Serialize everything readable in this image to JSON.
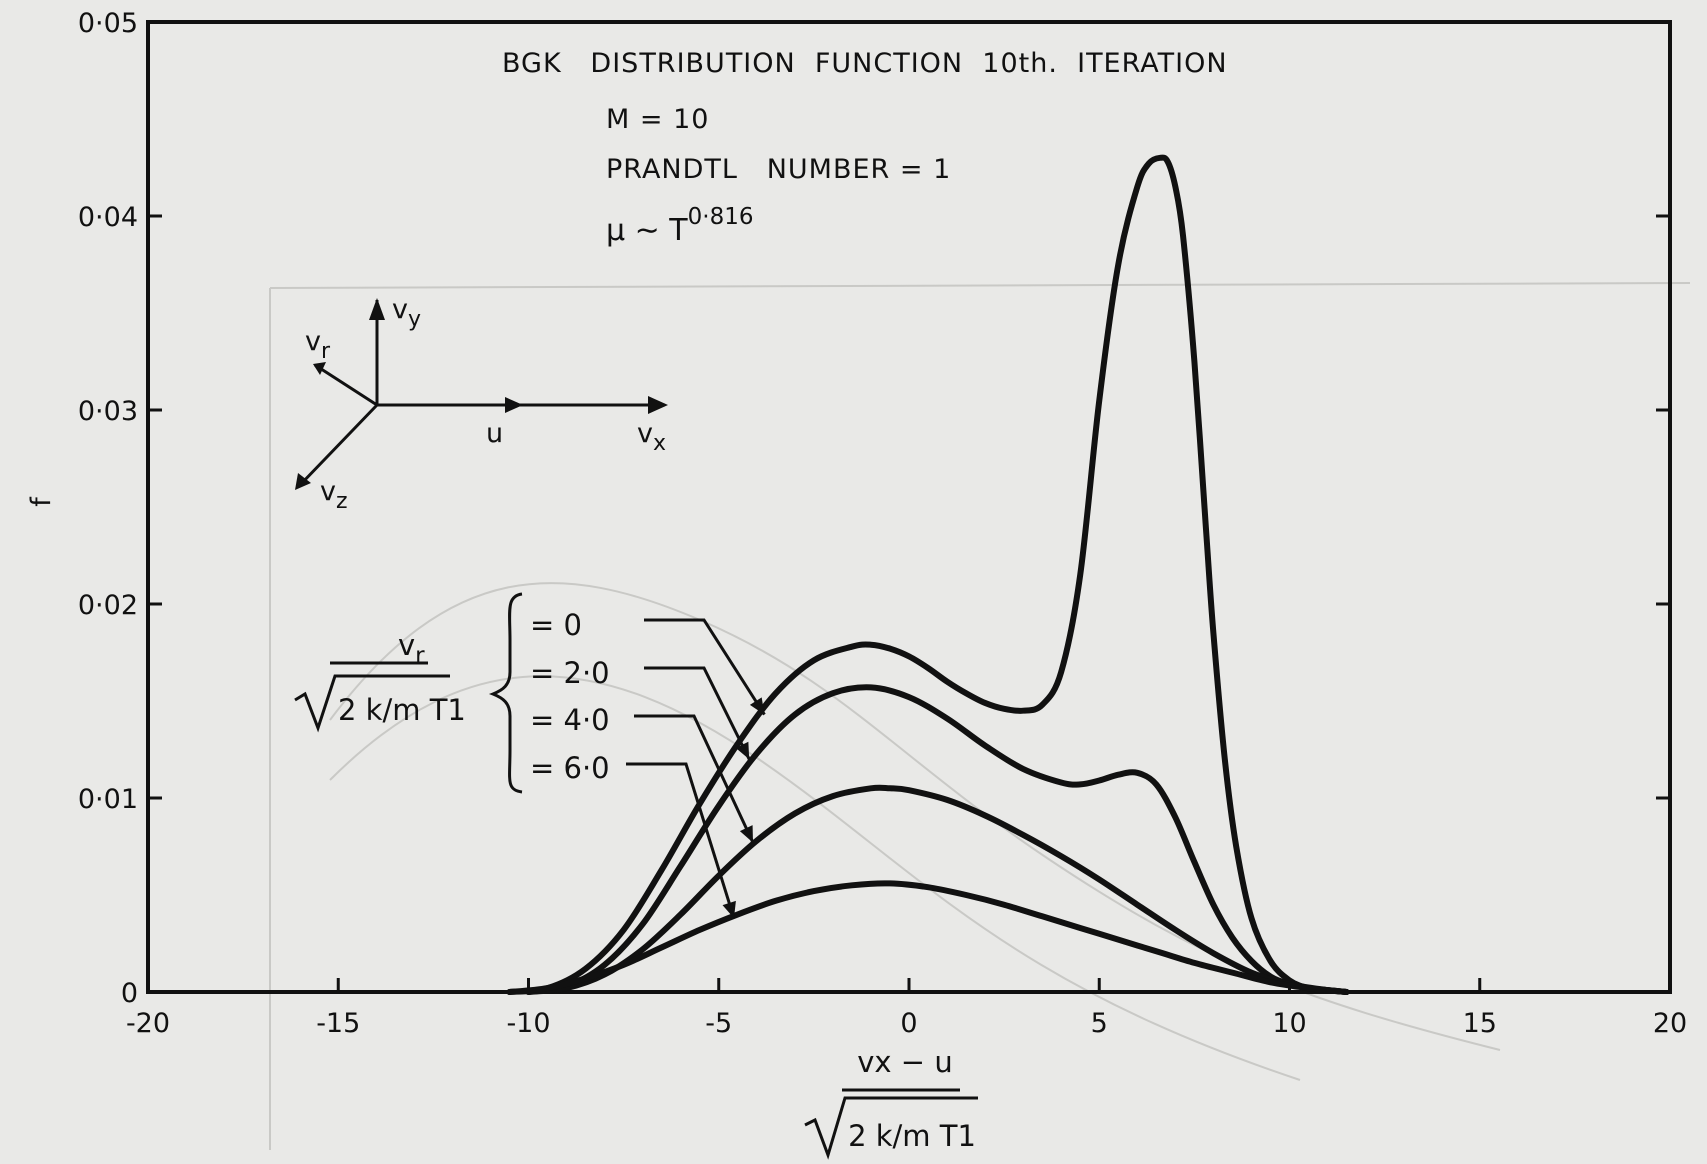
{
  "chart_data": {
    "type": "line",
    "title_lines": [
      "BGK   DISTRIBUTION  FUNCTION  10th.  ITERATION",
      "M = 10",
      "PRANDTL   NUMBER = 1"
    ],
    "viscosity_law": {
      "symbol": "μ ∼ T",
      "exponent": "0·816"
    },
    "xlabel": {
      "numerator": "vx − u",
      "denominator": "2 k/m T1"
    },
    "ylabel": "f",
    "xlim": [
      -20,
      20
    ],
    "ylim": [
      0,
      0.05
    ],
    "x_tick_labels": [
      {
        "value": -20,
        "label": "-20"
      },
      {
        "value": -15,
        "label": "-15"
      },
      {
        "value": -10,
        "label": "-10"
      },
      {
        "value": -5,
        "label": "-5"
      },
      {
        "value": 0,
        "label": "0"
      },
      {
        "value": 5,
        "label": "5"
      },
      {
        "value": 10,
        "label": "10"
      },
      {
        "value": 15,
        "label": "15"
      },
      {
        "value": 20,
        "label": "20"
      }
    ],
    "y_tick_labels": [
      {
        "value": 0,
        "label": "0"
      },
      {
        "value": 0.01,
        "label": "0·01"
      },
      {
        "value": 0.02,
        "label": "0·02"
      },
      {
        "value": 0.03,
        "label": "0·03"
      },
      {
        "value": 0.04,
        "label": "0·04"
      },
      {
        "value": 0.05,
        "label": "0·05"
      }
    ],
    "legend": {
      "variable": {
        "numerator": "vr",
        "denominator": "2 k/m T1"
      },
      "entries": [
        "=  0",
        "= 2·0",
        "= 4·0",
        "= 6·0"
      ]
    },
    "axes_inset": {
      "labels": [
        "vy",
        "vr",
        "u",
        "vx",
        "vz"
      ]
    },
    "series": [
      {
        "label": "= 0",
        "x": [
          -10.5,
          -9.5,
          -8.5,
          -7.5,
          -6.5,
          -5.5,
          -4.5,
          -3.5,
          -2.5,
          -1.5,
          -1.0,
          -0.5,
          0,
          0.5,
          1.0,
          1.5,
          2.0,
          2.5,
          3.0,
          3.5,
          4.0,
          4.5,
          5.0,
          5.5,
          6.0,
          6.3,
          6.6,
          6.8,
          7.0,
          7.2,
          7.5,
          7.8,
          8.0,
          8.3,
          8.6,
          9.0,
          9.5,
          10.0,
          10.5,
          11.0,
          11.5
        ],
        "y": [
          0,
          0.0002,
          0.0012,
          0.0032,
          0.0063,
          0.0097,
          0.0128,
          0.0154,
          0.0171,
          0.0178,
          0.0179,
          0.0177,
          0.0173,
          0.0167,
          0.016,
          0.0154,
          0.0149,
          0.0146,
          0.0145,
          0.0148,
          0.0165,
          0.0215,
          0.0305,
          0.0375,
          0.0415,
          0.0427,
          0.043,
          0.0428,
          0.0415,
          0.039,
          0.0325,
          0.024,
          0.0185,
          0.012,
          0.0075,
          0.0038,
          0.0016,
          0.0006,
          0.0002,
          0.0001,
          0
        ]
      },
      {
        "label": "= 2·0",
        "x": [
          -10.0,
          -9.0,
          -8.0,
          -7.0,
          -6.0,
          -5.0,
          -4.0,
          -3.0,
          -2.0,
          -1.0,
          0,
          1.0,
          2.0,
          3.0,
          4.0,
          4.5,
          5.0,
          5.5,
          6.0,
          6.5,
          7.0,
          7.5,
          8.0,
          8.5,
          9.0,
          9.5,
          10.0,
          10.5,
          11.0,
          11.5
        ],
        "y": [
          0,
          0.0003,
          0.0014,
          0.0035,
          0.0065,
          0.0096,
          0.0123,
          0.0143,
          0.0154,
          0.0157,
          0.0152,
          0.0141,
          0.0127,
          0.0115,
          0.0108,
          0.0107,
          0.0109,
          0.0112,
          0.0113,
          0.0107,
          0.009,
          0.0067,
          0.0045,
          0.0028,
          0.0016,
          0.0008,
          0.0004,
          0.0002,
          0.0001,
          0
        ]
      },
      {
        "label": "= 4·0",
        "x": [
          -10.0,
          -9.0,
          -8.0,
          -7.0,
          -6.0,
          -5.0,
          -4.0,
          -3.0,
          -2.0,
          -1.0,
          -0.5,
          0,
          1.0,
          2.0,
          3.0,
          4.0,
          5.0,
          6.0,
          7.0,
          8.0,
          9.0,
          10.0,
          11.0,
          11.5
        ],
        "y": [
          0,
          0.0002,
          0.0009,
          0.0022,
          0.004,
          0.006,
          0.0078,
          0.0092,
          0.0101,
          0.0105,
          0.0105,
          0.0104,
          0.0099,
          0.0091,
          0.0081,
          0.007,
          0.0058,
          0.0045,
          0.0032,
          0.002,
          0.001,
          0.0004,
          0.0001,
          0
        ]
      },
      {
        "label": "= 6·0",
        "x": [
          -10.5,
          -9.5,
          -8.5,
          -7.5,
          -6.5,
          -5.5,
          -4.5,
          -3.5,
          -2.5,
          -1.5,
          -0.5,
          0.5,
          1.5,
          2.5,
          3.5,
          4.5,
          5.5,
          6.5,
          7.5,
          8.5,
          9.5,
          10.5,
          11.5
        ],
        "y": [
          0,
          0.0002,
          0.0007,
          0.0014,
          0.0023,
          0.0032,
          0.004,
          0.0047,
          0.0052,
          0.0055,
          0.0056,
          0.0054,
          0.005,
          0.0045,
          0.0039,
          0.0033,
          0.0027,
          0.0021,
          0.0015,
          0.001,
          0.0005,
          0.0002,
          0
        ]
      }
    ],
    "grid": false,
    "legend_position": "left"
  },
  "colors": {
    "ink": "#111111",
    "paper": "#e9e9e7"
  }
}
